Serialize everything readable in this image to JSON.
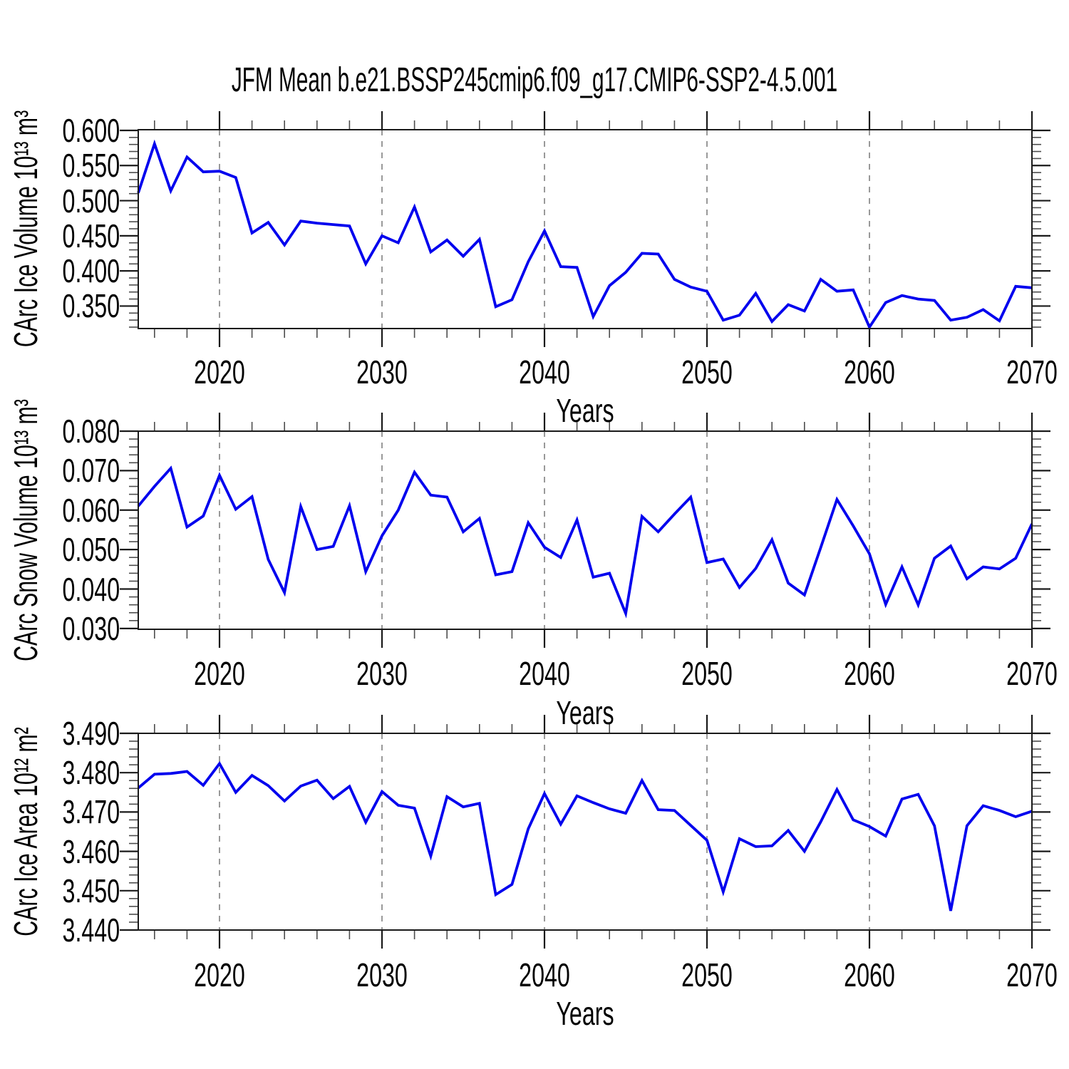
{
  "figure": {
    "title": "JFM Mean b.e21.BSSP245cmip6.f09_g17.CMIP6-SSP2-4.5.001"
  },
  "colors": {
    "line": "#0000EE",
    "grid": "#999999",
    "axis": "#1A1A1A",
    "minor_tick": "#4D4D4D",
    "text": "#000000"
  },
  "chart_data": {
    "type": "line",
    "x_label": "Years",
    "xlim": [
      2015,
      2070
    ],
    "xticks": [
      2020,
      2030,
      2040,
      2050,
      2060,
      2070
    ],
    "xminor_step": 2,
    "grid_x": [
      2020,
      2030,
      2040,
      2050,
      2060
    ],
    "grid_style": "dashed-vertical",
    "legend": "none",
    "years": [
      2015,
      2016,
      2017,
      2018,
      2019,
      2020,
      2021,
      2022,
      2023,
      2024,
      2025,
      2026,
      2027,
      2028,
      2029,
      2030,
      2031,
      2032,
      2033,
      2034,
      2035,
      2036,
      2037,
      2038,
      2039,
      2040,
      2041,
      2042,
      2043,
      2044,
      2045,
      2046,
      2047,
      2048,
      2049,
      2050,
      2051,
      2052,
      2053,
      2054,
      2055,
      2056,
      2057,
      2058,
      2059,
      2060,
      2061,
      2062,
      2063,
      2064,
      2065,
      2066,
      2067,
      2068,
      2069,
      2070
    ],
    "panels": [
      {
        "name": "carc-ice-volume",
        "ylabel": "CArc Ice Volume 10¹³ m³",
        "ylim": [
          0.318,
          0.601
        ],
        "yticks": [
          0.35,
          0.4,
          0.45,
          0.5,
          0.55,
          0.6
        ],
        "yminor_step": 0.01,
        "ytick_decimals": 3,
        "values": [
          0.511,
          0.581,
          0.514,
          0.562,
          0.541,
          0.542,
          0.533,
          0.454,
          0.469,
          0.437,
          0.471,
          0.468,
          0.466,
          0.464,
          0.41,
          0.45,
          0.44,
          0.491,
          0.427,
          0.444,
          0.421,
          0.445,
          0.349,
          0.359,
          0.413,
          0.457,
          0.406,
          0.405,
          0.335,
          0.379,
          0.398,
          0.425,
          0.424,
          0.388,
          0.377,
          0.371,
          0.33,
          0.337,
          0.368,
          0.328,
          0.352,
          0.343,
          0.388,
          0.371,
          0.373,
          0.32,
          0.355,
          0.365,
          0.36,
          0.358,
          0.33,
          0.334,
          0.345,
          0.329,
          0.378,
          0.376
        ]
      },
      {
        "name": "carc-snow-volume",
        "ylabel": "CArc Snow Volume 10¹³ m³",
        "ylim": [
          0.0298,
          0.08
        ],
        "yticks": [
          0.03,
          0.04,
          0.05,
          0.06,
          0.07,
          0.08
        ],
        "yminor_step": 0.002,
        "ytick_decimals": 3,
        "values": [
          0.061,
          0.066,
          0.0706,
          0.0557,
          0.0585,
          0.0688,
          0.0602,
          0.0634,
          0.0475,
          0.0391,
          0.0609,
          0.05,
          0.0508,
          0.0611,
          0.0444,
          0.0535,
          0.06,
          0.0696,
          0.0638,
          0.0633,
          0.0545,
          0.0579,
          0.0436,
          0.0444,
          0.0568,
          0.0506,
          0.048,
          0.0575,
          0.043,
          0.044,
          0.0338,
          0.0584,
          0.0545,
          0.059,
          0.0633,
          0.0467,
          0.0476,
          0.0404,
          0.0452,
          0.0525,
          0.0415,
          0.0385,
          0.0505,
          0.0627,
          0.056,
          0.0489,
          0.0361,
          0.0456,
          0.036,
          0.0478,
          0.0509,
          0.0426,
          0.0456,
          0.0451,
          0.0478,
          0.0565
        ]
      },
      {
        "name": "carc-ice-area",
        "ylabel": "CArc Ice Area 10¹² m²",
        "ylim": [
          3.44,
          3.49
        ],
        "yticks": [
          3.44,
          3.45,
          3.46,
          3.47,
          3.48,
          3.49
        ],
        "yminor_step": 0.002,
        "ytick_decimals": 3,
        "values": [
          3.4761,
          3.4796,
          3.4798,
          3.4803,
          3.4768,
          3.4823,
          3.475,
          3.4793,
          3.4767,
          3.4728,
          3.4766,
          3.4781,
          3.4734,
          3.4765,
          3.4674,
          3.4752,
          3.4717,
          3.471,
          3.4588,
          3.4739,
          3.4713,
          3.4722,
          3.449,
          3.4516,
          3.4657,
          3.4747,
          3.4669,
          3.4741,
          3.4724,
          3.4708,
          3.4697,
          3.478,
          3.4706,
          3.4704,
          3.4666,
          3.4628,
          3.4497,
          3.4632,
          3.4612,
          3.4614,
          3.4653,
          3.46,
          3.4675,
          3.4757,
          3.468,
          3.4663,
          3.4639,
          3.4733,
          3.4745,
          3.4665,
          3.4449,
          3.4665,
          3.4716,
          3.4704,
          3.4688,
          3.4702
        ]
      }
    ]
  }
}
